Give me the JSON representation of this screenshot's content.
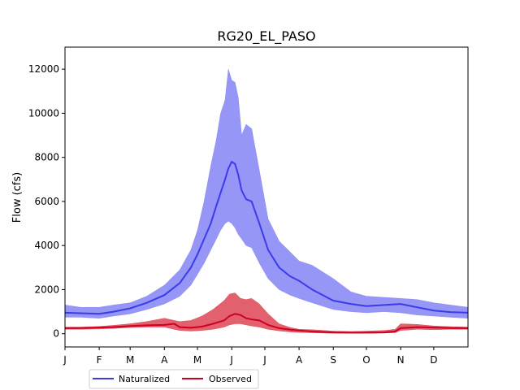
{
  "chart_data": {
    "type": "area",
    "title": "RG20_EL_PASO",
    "xlabel": "",
    "ylabel": "Flow (cfs)",
    "x_ticks": [
      "J",
      "F",
      "M",
      "A",
      "M",
      "J",
      "J",
      "A",
      "S",
      "O",
      "N",
      "D"
    ],
    "x_tick_days": [
      1,
      32,
      60,
      91,
      121,
      152,
      182,
      213,
      244,
      274,
      305,
      335
    ],
    "xlim": [
      1,
      366
    ],
    "ylim": [
      -600,
      13000
    ],
    "y_ticks": [
      0,
      2000,
      4000,
      6000,
      8000,
      10000,
      12000
    ],
    "legend_position": "bottom-left (below axes)",
    "series": [
      {
        "name": "Naturalized",
        "color": "#3b3bea",
        "fill_color": "#8b8bf5",
        "x": [
          1,
          15,
          32,
          45,
          60,
          75,
          91,
          105,
          115,
          121,
          127,
          133,
          138,
          142,
          146,
          149,
          152,
          155,
          158,
          161,
          165,
          170,
          177,
          185,
          195,
          205,
          213,
          225,
          244,
          260,
          274,
          290,
          305,
          320,
          335,
          350,
          366
        ],
        "median": [
          950,
          930,
          900,
          1000,
          1150,
          1400,
          1750,
          2300,
          3000,
          3600,
          4300,
          5000,
          5800,
          6400,
          7000,
          7500,
          7800,
          7700,
          7200,
          6500,
          6100,
          6000,
          5000,
          3800,
          3000,
          2600,
          2400,
          2000,
          1500,
          1350,
          1250,
          1300,
          1350,
          1200,
          1050,
          980,
          950
        ],
        "lower": [
          750,
          750,
          700,
          800,
          900,
          1100,
          1350,
          1700,
          2200,
          2700,
          3200,
          3800,
          4300,
          4700,
          5000,
          5100,
          5000,
          4800,
          4500,
          4300,
          4000,
          3900,
          3200,
          2500,
          2000,
          1750,
          1600,
          1400,
          1100,
          1000,
          950,
          1000,
          950,
          850,
          800,
          750,
          700
        ],
        "upper": [
          1300,
          1200,
          1200,
          1300,
          1400,
          1700,
          2200,
          2900,
          3800,
          4700,
          6000,
          7600,
          8800,
          10000,
          10600,
          12000,
          11500,
          11400,
          10700,
          9000,
          9500,
          9300,
          7400,
          5200,
          4200,
          3700,
          3300,
          3100,
          2500,
          1900,
          1700,
          1650,
          1600,
          1550,
          1400,
          1300,
          1200
        ]
      },
      {
        "name": "Observed",
        "color": "#cc0022",
        "fill_color": "#e0505e",
        "x": [
          1,
          15,
          32,
          45,
          60,
          75,
          91,
          100,
          105,
          115,
          125,
          135,
          145,
          150,
          155,
          160,
          165,
          170,
          177,
          185,
          195,
          205,
          213,
          225,
          244,
          260,
          274,
          290,
          300,
          305,
          320,
          335,
          350,
          366
        ],
        "median": [
          250,
          260,
          280,
          300,
          350,
          380,
          400,
          450,
          300,
          270,
          320,
          450,
          600,
          800,
          900,
          850,
          700,
          650,
          600,
          400,
          250,
          180,
          150,
          100,
          60,
          50,
          50,
          60,
          100,
          250,
          300,
          280,
          260,
          250
        ],
        "lower": [
          200,
          200,
          220,
          240,
          280,
          300,
          300,
          200,
          150,
          120,
          150,
          200,
          300,
          400,
          450,
          450,
          400,
          350,
          300,
          200,
          130,
          80,
          60,
          40,
          20,
          15,
          20,
          30,
          50,
          150,
          200,
          180,
          200,
          200
        ],
        "upper": [
          300,
          300,
          330,
          380,
          450,
          550,
          700,
          600,
          550,
          600,
          800,
          1100,
          1500,
          1800,
          1850,
          1600,
          1550,
          1600,
          1350,
          900,
          450,
          280,
          200,
          180,
          120,
          100,
          120,
          150,
          200,
          450,
          420,
          350,
          320,
          300
        ]
      }
    ]
  }
}
